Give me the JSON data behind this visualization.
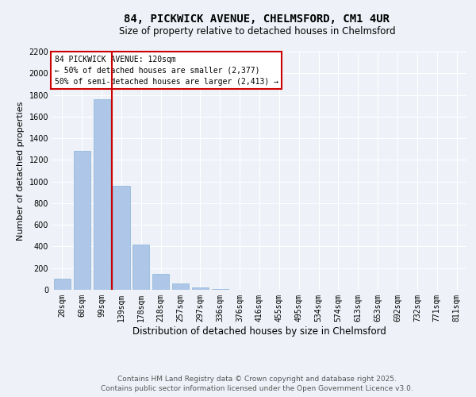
{
  "title": "84, PICKWICK AVENUE, CHELMSFORD, CM1 4UR",
  "subtitle": "Size of property relative to detached houses in Chelmsford",
  "xlabel": "Distribution of detached houses by size in Chelmsford",
  "ylabel": "Number of detached properties",
  "categories": [
    "20sqm",
    "60sqm",
    "99sqm",
    "139sqm",
    "178sqm",
    "218sqm",
    "257sqm",
    "297sqm",
    "336sqm",
    "376sqm",
    "416sqm",
    "455sqm",
    "495sqm",
    "534sqm",
    "574sqm",
    "613sqm",
    "653sqm",
    "692sqm",
    "732sqm",
    "771sqm",
    "811sqm"
  ],
  "values": [
    100,
    1280,
    1760,
    960,
    420,
    150,
    60,
    20,
    5,
    2,
    0,
    0,
    0,
    0,
    0,
    0,
    0,
    0,
    0,
    0,
    0
  ],
  "bar_color": "#aec6e8",
  "bar_edge_color": "#8ab4d8",
  "background_color": "#eef2f8",
  "grid_color": "#ffffff",
  "vline_x": 2.5,
  "vline_color": "#cc0000",
  "annotation_text": "84 PICKWICK AVENUE: 120sqm\n← 50% of detached houses are smaller (2,377)\n50% of semi-detached houses are larger (2,413) →",
  "annotation_box_color": "#ffffff",
  "annotation_box_edge": "#cc0000",
  "ylim": [
    0,
    2200
  ],
  "yticks": [
    0,
    200,
    400,
    600,
    800,
    1000,
    1200,
    1400,
    1600,
    1800,
    2000,
    2200
  ],
  "footer_line1": "Contains HM Land Registry data © Crown copyright and database right 2025.",
  "footer_line2": "Contains public sector information licensed under the Open Government Licence v3.0.",
  "title_fontsize": 10,
  "subtitle_fontsize": 8.5,
  "xlabel_fontsize": 8.5,
  "ylabel_fontsize": 8,
  "tick_fontsize": 7,
  "annotation_fontsize": 7,
  "footer_fontsize": 6.5
}
